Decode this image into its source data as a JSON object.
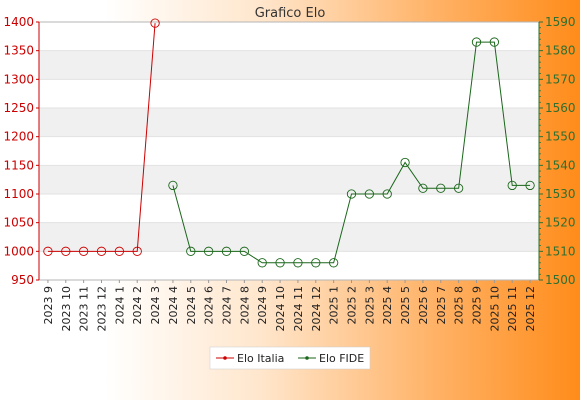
{
  "chart_data": {
    "type": "line",
    "title": "Grafico Elo",
    "categories": [
      "2023 9",
      "2023 10",
      "2023 11",
      "2023 12",
      "2024 1",
      "2024 2",
      "2024 3",
      "2024 4",
      "2024 5",
      "2024 6",
      "2024 7",
      "2024 8",
      "2024 9",
      "2024 10",
      "2024 11",
      "2024 12",
      "2025 1",
      "2025 2",
      "2025 3",
      "2025 4",
      "2025 5",
      "2025 6",
      "2025 7",
      "2025 8",
      "2025 9",
      "2025 10",
      "2025 11",
      "2025 12"
    ],
    "y_left": {
      "ylim": [
        950,
        1400
      ],
      "ticks": [
        950,
        1000,
        1050,
        1100,
        1150,
        1200,
        1250,
        1300,
        1350,
        1400
      ],
      "color": "#cc0000"
    },
    "y_right": {
      "ylim": [
        1500,
        1590
      ],
      "ticks": [
        1500,
        1510,
        1520,
        1530,
        1540,
        1550,
        1560,
        1570,
        1580,
        1590
      ],
      "color": "#2f6f2f"
    },
    "grid": true,
    "legend_position": "bottom",
    "series": [
      {
        "name": "Elo Italia",
        "axis": "left",
        "color": "#cc0000",
        "values": [
          1000,
          1000,
          1000,
          1000,
          1000,
          1000,
          1398,
          null,
          null,
          null,
          null,
          null,
          null,
          null,
          null,
          null,
          null,
          null,
          null,
          null,
          null,
          null,
          null,
          null,
          null,
          null,
          null,
          null
        ]
      },
      {
        "name": "Elo FIDE",
        "axis": "right",
        "color": "#1a661a",
        "values": [
          null,
          null,
          null,
          null,
          null,
          null,
          null,
          1533,
          1510,
          1510,
          1510,
          1510,
          1506,
          1506,
          1506,
          1506,
          1506,
          1530,
          1530,
          1530,
          1541,
          1532,
          1532,
          1532,
          1583,
          1583,
          1533,
          1533
        ]
      }
    ]
  }
}
